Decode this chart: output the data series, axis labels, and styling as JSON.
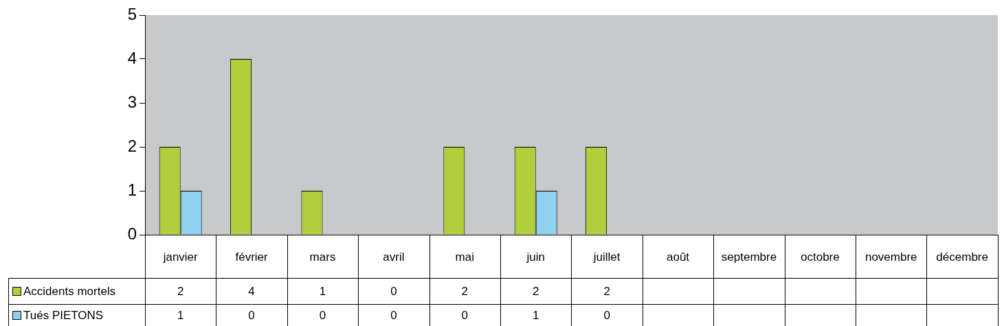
{
  "chart_data": {
    "type": "bar",
    "categories": [
      "janvier",
      "février",
      "mars",
      "avril",
      "mai",
      "juin",
      "juillet",
      "août",
      "septembre",
      "octobre",
      "novembre",
      "décembre"
    ],
    "series": [
      {
        "name": "Accidents mortels",
        "color": "#afcf3b",
        "values": [
          2,
          4,
          1,
          0,
          2,
          2,
          2,
          null,
          null,
          null,
          null,
          null
        ]
      },
      {
        "name": "Tués PIETONS",
        "color": "#8fd1ef",
        "values": [
          1,
          0,
          0,
          0,
          0,
          1,
          0,
          null,
          null,
          null,
          null,
          null
        ]
      }
    ],
    "ylim": [
      0,
      5
    ],
    "yticks": [
      0,
      1,
      2,
      3,
      4,
      5
    ],
    "grid": false,
    "legend": "bottom",
    "data_labels": true
  }
}
